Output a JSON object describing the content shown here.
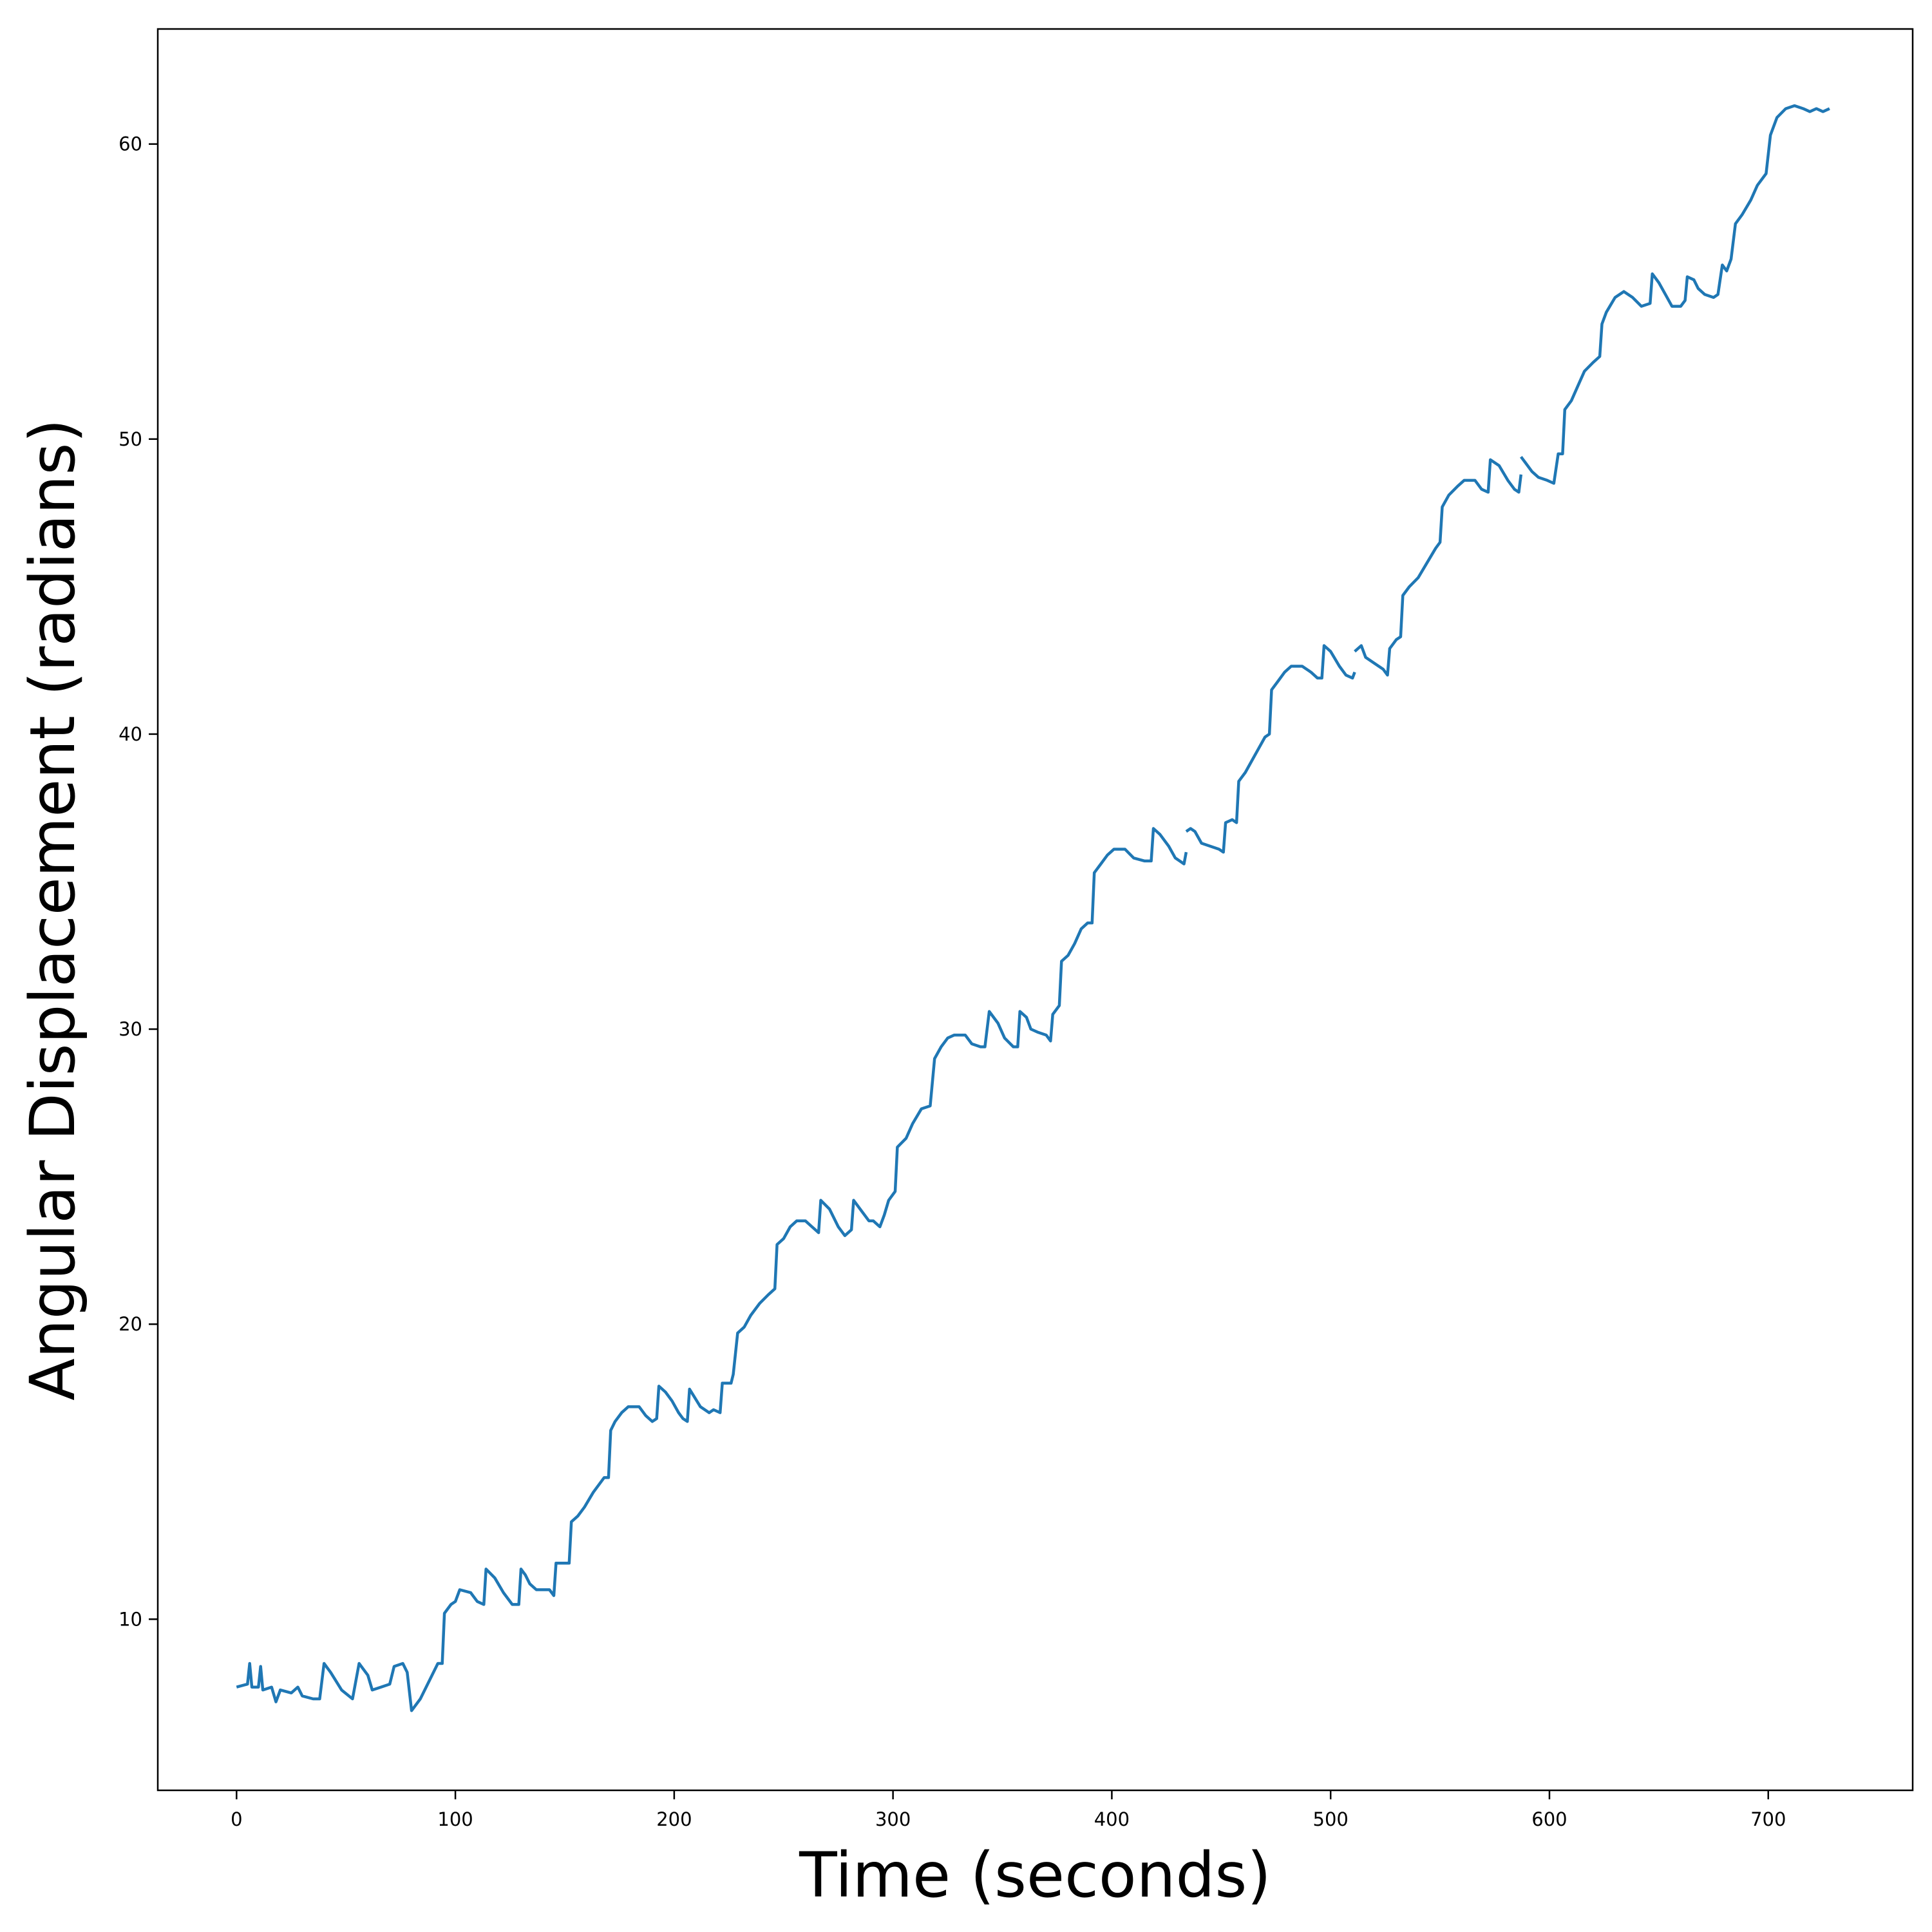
{
  "chart_data": {
    "type": "line",
    "title": "",
    "xlabel": "Time (seconds)",
    "ylabel": "Angular Displacement (radians)",
    "xlim": [
      -36,
      766
    ],
    "ylim": [
      4.2,
      63.9
    ],
    "xticks": [
      0,
      100,
      200,
      300,
      400,
      500,
      600,
      700
    ],
    "yticks": [
      10,
      20,
      30,
      40,
      50,
      60
    ],
    "grid": false,
    "legend": "none",
    "colors": {
      "line": "#1f77b4",
      "axes": "#000000",
      "background": "#ffffff"
    },
    "series": [
      {
        "segments": [
          [
            [
              0,
              7.7
            ],
            [
              5,
              7.8
            ],
            [
              6,
              8.5
            ],
            [
              7,
              7.7
            ],
            [
              10,
              7.7
            ],
            [
              11,
              8.4
            ],
            [
              12,
              7.6
            ],
            [
              16,
              7.7
            ],
            [
              18,
              7.2
            ],
            [
              20,
              7.6
            ],
            [
              25,
              7.5
            ],
            [
              28,
              7.7
            ],
            [
              30,
              7.4
            ],
            [
              35,
              7.3
            ],
            [
              38,
              7.3
            ],
            [
              40,
              8.5
            ],
            [
              43,
              8.2
            ],
            [
              48,
              7.6
            ],
            [
              53,
              7.3
            ],
            [
              56,
              8.5
            ],
            [
              60,
              8.1
            ],
            [
              62,
              7.6
            ],
            [
              66,
              7.7
            ],
            [
              70,
              7.8
            ],
            [
              72,
              8.4
            ],
            [
              76,
              8.5
            ],
            [
              78,
              8.2
            ],
            [
              80,
              6.9
            ],
            [
              84,
              7.3
            ],
            [
              88,
              7.9
            ],
            [
              92,
              8.5
            ],
            [
              94,
              8.5
            ],
            [
              95,
              10.2
            ],
            [
              98,
              10.5
            ],
            [
              100,
              10.6
            ],
            [
              102,
              11.0
            ],
            [
              107,
              10.9
            ],
            [
              110,
              10.6
            ],
            [
              113,
              10.5
            ],
            [
              114,
              11.7
            ],
            [
              118,
              11.4
            ],
            [
              122,
              10.9
            ],
            [
              126,
              10.5
            ],
            [
              129,
              10.5
            ],
            [
              130,
              11.7
            ],
            [
              132,
              11.5
            ],
            [
              134,
              11.2
            ],
            [
              137,
              11.0
            ],
            [
              143,
              11.0
            ],
            [
              145,
              10.8
            ],
            [
              146,
              11.9
            ],
            [
              150,
              11.9
            ],
            [
              152,
              11.9
            ],
            [
              153,
              13.3
            ],
            [
              156,
              13.5
            ],
            [
              159,
              13.8
            ],
            [
              163,
              14.3
            ],
            [
              168,
              14.8
            ],
            [
              170,
              14.8
            ],
            [
              171,
              16.4
            ],
            [
              173,
              16.7
            ],
            [
              176,
              17.0
            ],
            [
              179,
              17.2
            ],
            [
              184,
              17.2
            ],
            [
              187,
              16.9
            ],
            [
              190,
              16.7
            ],
            [
              192,
              16.8
            ],
            [
              193,
              17.9
            ],
            [
              196,
              17.7
            ],
            [
              199,
              17.4
            ],
            [
              202,
              17.0
            ],
            [
              204,
              16.8
            ],
            [
              206,
              16.7
            ],
            [
              207,
              17.8
            ],
            [
              212,
              17.2
            ],
            [
              216,
              17.0
            ],
            [
              218,
              17.1
            ],
            [
              221,
              17.0
            ],
            [
              222,
              18.0
            ],
            [
              226,
              18.0
            ],
            [
              227,
              18.3
            ],
            [
              229,
              19.7
            ],
            [
              232,
              19.9
            ],
            [
              235,
              20.3
            ],
            [
              239,
              20.7
            ],
            [
              243,
              21.0
            ],
            [
              246,
              21.2
            ],
            [
              247,
              22.7
            ],
            [
              250,
              22.9
            ],
            [
              253,
              23.3
            ],
            [
              256,
              23.5
            ],
            [
              260,
              23.5
            ],
            [
              263,
              23.3
            ],
            [
              266,
              23.1
            ],
            [
              267,
              24.2
            ],
            [
              271,
              23.9
            ],
            [
              275,
              23.3
            ],
            [
              278,
              23.0
            ],
            [
              281,
              23.2
            ],
            [
              282,
              24.2
            ],
            [
              286,
              23.8
            ],
            [
              289,
              23.5
            ],
            [
              291,
              23.5
            ],
            [
              294,
              23.3
            ],
            [
              296,
              23.7
            ],
            [
              298,
              24.2
            ],
            [
              301,
              24.5
            ],
            [
              302,
              26.0
            ],
            [
              306,
              26.3
            ],
            [
              309,
              26.8
            ],
            [
              313,
              27.3
            ],
            [
              317,
              27.4
            ],
            [
              319,
              29.0
            ],
            [
              322,
              29.4
            ],
            [
              325,
              29.7
            ],
            [
              328,
              29.8
            ],
            [
              333,
              29.8
            ],
            [
              336,
              29.5
            ],
            [
              340,
              29.4
            ],
            [
              342,
              29.4
            ],
            [
              344,
              30.6
            ],
            [
              348,
              30.2
            ],
            [
              351,
              29.7
            ],
            [
              355,
              29.4
            ],
            [
              357,
              29.4
            ],
            [
              358,
              30.6
            ],
            [
              361,
              30.4
            ],
            [
              363,
              30.0
            ],
            [
              366,
              29.9
            ],
            [
              370,
              29.8
            ],
            [
              372,
              29.6
            ],
            [
              373,
              30.5
            ],
            [
              376,
              30.8
            ],
            [
              377,
              32.3
            ],
            [
              380,
              32.5
            ],
            [
              383,
              32.9
            ],
            [
              386,
              33.4
            ],
            [
              389,
              33.6
            ],
            [
              391,
              33.6
            ],
            [
              392,
              35.3
            ],
            [
              395,
              35.6
            ],
            [
              398,
              35.9
            ],
            [
              401,
              36.1
            ],
            [
              406,
              36.1
            ],
            [
              410,
              35.8
            ],
            [
              415,
              35.7
            ],
            [
              418,
              35.7
            ],
            [
              419,
              36.8
            ],
            [
              422,
              36.6
            ],
            [
              426,
              36.2
            ],
            [
              429,
              35.8
            ],
            [
              431,
              35.7
            ],
            [
              433,
              35.6
            ],
            [
              434,
              36.0
            ]
          ],
          [
            [
              434,
              36.7
            ],
            [
              436,
              36.8
            ],
            [
              438,
              36.7
            ],
            [
              441,
              36.3
            ],
            [
              445,
              36.2
            ],
            [
              449,
              36.1
            ],
            [
              451,
              36.0
            ],
            [
              452,
              37.0
            ],
            [
              455,
              37.1
            ],
            [
              457,
              37.0
            ],
            [
              458,
              38.4
            ],
            [
              461,
              38.7
            ],
            [
              464,
              39.1
            ],
            [
              467,
              39.5
            ],
            [
              470,
              39.9
            ],
            [
              472,
              40.0
            ],
            [
              473,
              41.5
            ],
            [
              476,
              41.8
            ],
            [
              479,
              42.1
            ],
            [
              482,
              42.3
            ],
            [
              487,
              42.3
            ],
            [
              491,
              42.1
            ],
            [
              494,
              41.9
            ],
            [
              496,
              41.9
            ],
            [
              497,
              43.0
            ],
            [
              500,
              42.8
            ],
            [
              504,
              42.3
            ],
            [
              507,
              42.0
            ],
            [
              510,
              41.9
            ],
            [
              511,
              42.1
            ]
          ],
          [
            [
              511,
              42.8
            ],
            [
              514,
              43.0
            ],
            [
              516,
              42.6
            ],
            [
              520,
              42.4
            ],
            [
              524,
              42.2
            ],
            [
              526,
              42.0
            ],
            [
              527,
              42.9
            ],
            [
              530,
              43.2
            ],
            [
              532,
              43.3
            ],
            [
              533,
              44.7
            ],
            [
              536,
              45.0
            ],
            [
              540,
              45.3
            ],
            [
              544,
              45.8
            ],
            [
              548,
              46.3
            ],
            [
              550,
              46.5
            ],
            [
              551,
              47.7
            ],
            [
              554,
              48.1
            ],
            [
              558,
              48.4
            ],
            [
              561,
              48.6
            ],
            [
              566,
              48.6
            ],
            [
              569,
              48.3
            ],
            [
              572,
              48.2
            ],
            [
              573,
              49.3
            ],
            [
              577,
              49.1
            ],
            [
              581,
              48.6
            ],
            [
              584,
              48.3
            ],
            [
              586,
              48.2
            ],
            [
              587,
              48.8
            ]
          ],
          [
            [
              587,
              49.4
            ],
            [
              589,
              49.2
            ],
            [
              592,
              48.9
            ],
            [
              595,
              48.7
            ],
            [
              599,
              48.6
            ],
            [
              602,
              48.5
            ],
            [
              604,
              49.5
            ],
            [
              606,
              49.5
            ],
            [
              607,
              51.0
            ],
            [
              610,
              51.3
            ],
            [
              613,
              51.8
            ],
            [
              616,
              52.3
            ],
            [
              620,
              52.6
            ],
            [
              623,
              52.8
            ],
            [
              624,
              53.9
            ],
            [
              626,
              54.3
            ],
            [
              630,
              54.8
            ],
            [
              634,
              55.0
            ],
            [
              638,
              54.8
            ],
            [
              642,
              54.5
            ],
            [
              646,
              54.6
            ],
            [
              647,
              55.6
            ],
            [
              650,
              55.3
            ],
            [
              653,
              54.9
            ],
            [
              656,
              54.5
            ],
            [
              660,
              54.5
            ],
            [
              662,
              54.7
            ],
            [
              663,
              55.5
            ],
            [
              666,
              55.4
            ],
            [
              668,
              55.1
            ],
            [
              671,
              54.9
            ],
            [
              675,
              54.8
            ],
            [
              677,
              54.9
            ],
            [
              679,
              55.9
            ],
            [
              681,
              55.7
            ],
            [
              683,
              56.1
            ],
            [
              685,
              57.3
            ],
            [
              688,
              57.6
            ],
            [
              692,
              58.1
            ],
            [
              695,
              58.6
            ],
            [
              699,
              59.0
            ],
            [
              701,
              60.3
            ],
            [
              704,
              60.9
            ],
            [
              708,
              61.2
            ],
            [
              712,
              61.3
            ],
            [
              716,
              61.2
            ],
            [
              719,
              61.1
            ],
            [
              722,
              61.2
            ],
            [
              725,
              61.1
            ],
            [
              728,
              61.2
            ]
          ]
        ]
      }
    ]
  }
}
